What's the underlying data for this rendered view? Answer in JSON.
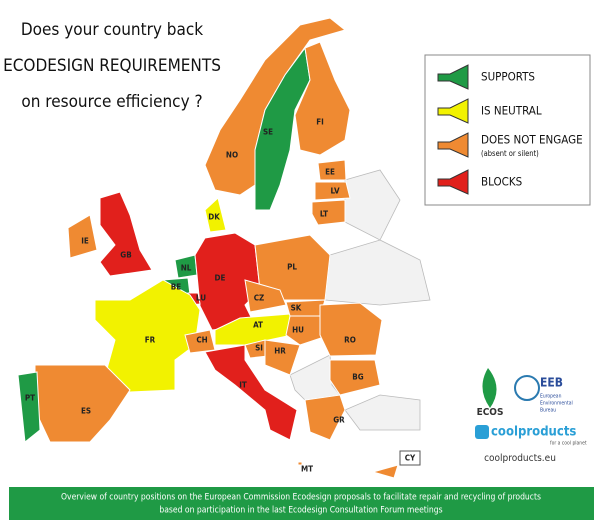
{
  "title": [
    "Does your country back",
    "ECODESIGN REQUIREMENTS",
    "on resource efficiency ?"
  ],
  "legend": [
    {
      "label": "SUPPORTS",
      "color": "#1f9a45"
    },
    {
      "label": "IS NEUTRAL",
      "color": "#f2f200"
    },
    {
      "label": "DOES NOT ENGAGE",
      "sublabel": "(absent or silent)",
      "color": "#ef8a32"
    },
    {
      "label": "BLOCKS",
      "color": "#e1201c"
    }
  ],
  "countries": [
    {
      "code": "NO",
      "stance": "DOES NOT ENGAGE"
    },
    {
      "code": "SE",
      "stance": "SUPPORTS"
    },
    {
      "code": "FI",
      "stance": "DOES NOT ENGAGE"
    },
    {
      "code": "EE",
      "stance": "DOES NOT ENGAGE"
    },
    {
      "code": "LV",
      "stance": "DOES NOT ENGAGE"
    },
    {
      "code": "LT",
      "stance": "DOES NOT ENGAGE"
    },
    {
      "code": "DK",
      "stance": "IS NEUTRAL"
    },
    {
      "code": "IE",
      "stance": "DOES NOT ENGAGE"
    },
    {
      "code": "GB",
      "stance": "BLOCKS"
    },
    {
      "code": "NL",
      "stance": "SUPPORTS"
    },
    {
      "code": "BE",
      "stance": "SUPPORTS"
    },
    {
      "code": "DE",
      "stance": "BLOCKS"
    },
    {
      "code": "LU",
      "stance": "BLOCKS"
    },
    {
      "code": "FR",
      "stance": "IS NEUTRAL"
    },
    {
      "code": "CH",
      "stance": "DOES NOT ENGAGE"
    },
    {
      "code": "AT",
      "stance": "IS NEUTRAL"
    },
    {
      "code": "IT",
      "stance": "BLOCKS"
    },
    {
      "code": "PL",
      "stance": "DOES NOT ENGAGE"
    },
    {
      "code": "CZ",
      "stance": "DOES NOT ENGAGE"
    },
    {
      "code": "SK",
      "stance": "DOES NOT ENGAGE"
    },
    {
      "code": "HU",
      "stance": "DOES NOT ENGAGE"
    },
    {
      "code": "SI",
      "stance": "DOES NOT ENGAGE"
    },
    {
      "code": "HR",
      "stance": "DOES NOT ENGAGE"
    },
    {
      "code": "RO",
      "stance": "DOES NOT ENGAGE"
    },
    {
      "code": "BG",
      "stance": "DOES NOT ENGAGE"
    },
    {
      "code": "GR",
      "stance": "DOES NOT ENGAGE"
    },
    {
      "code": "ES",
      "stance": "DOES NOT ENGAGE"
    },
    {
      "code": "PT",
      "stance": "SUPPORTS"
    },
    {
      "code": "MT",
      "stance": "DOES NOT ENGAGE"
    },
    {
      "code": "CY",
      "stance": "DOES NOT ENGAGE"
    }
  ],
  "logos": {
    "ecos": "ECOS",
    "eeb": "EEB",
    "eeb_sub": [
      "European",
      "Environmental",
      "Bureau"
    ],
    "coolproducts": "coolproducts",
    "coolproducts_sub": "for a cool planet",
    "url": "coolproducts.eu"
  },
  "footer": [
    "Overview of country positions on the European Commission Ecodesign proposals to facilitate repair and recycling of products",
    "based on participation in the last Ecodesign Consultation Forum meetings"
  ]
}
